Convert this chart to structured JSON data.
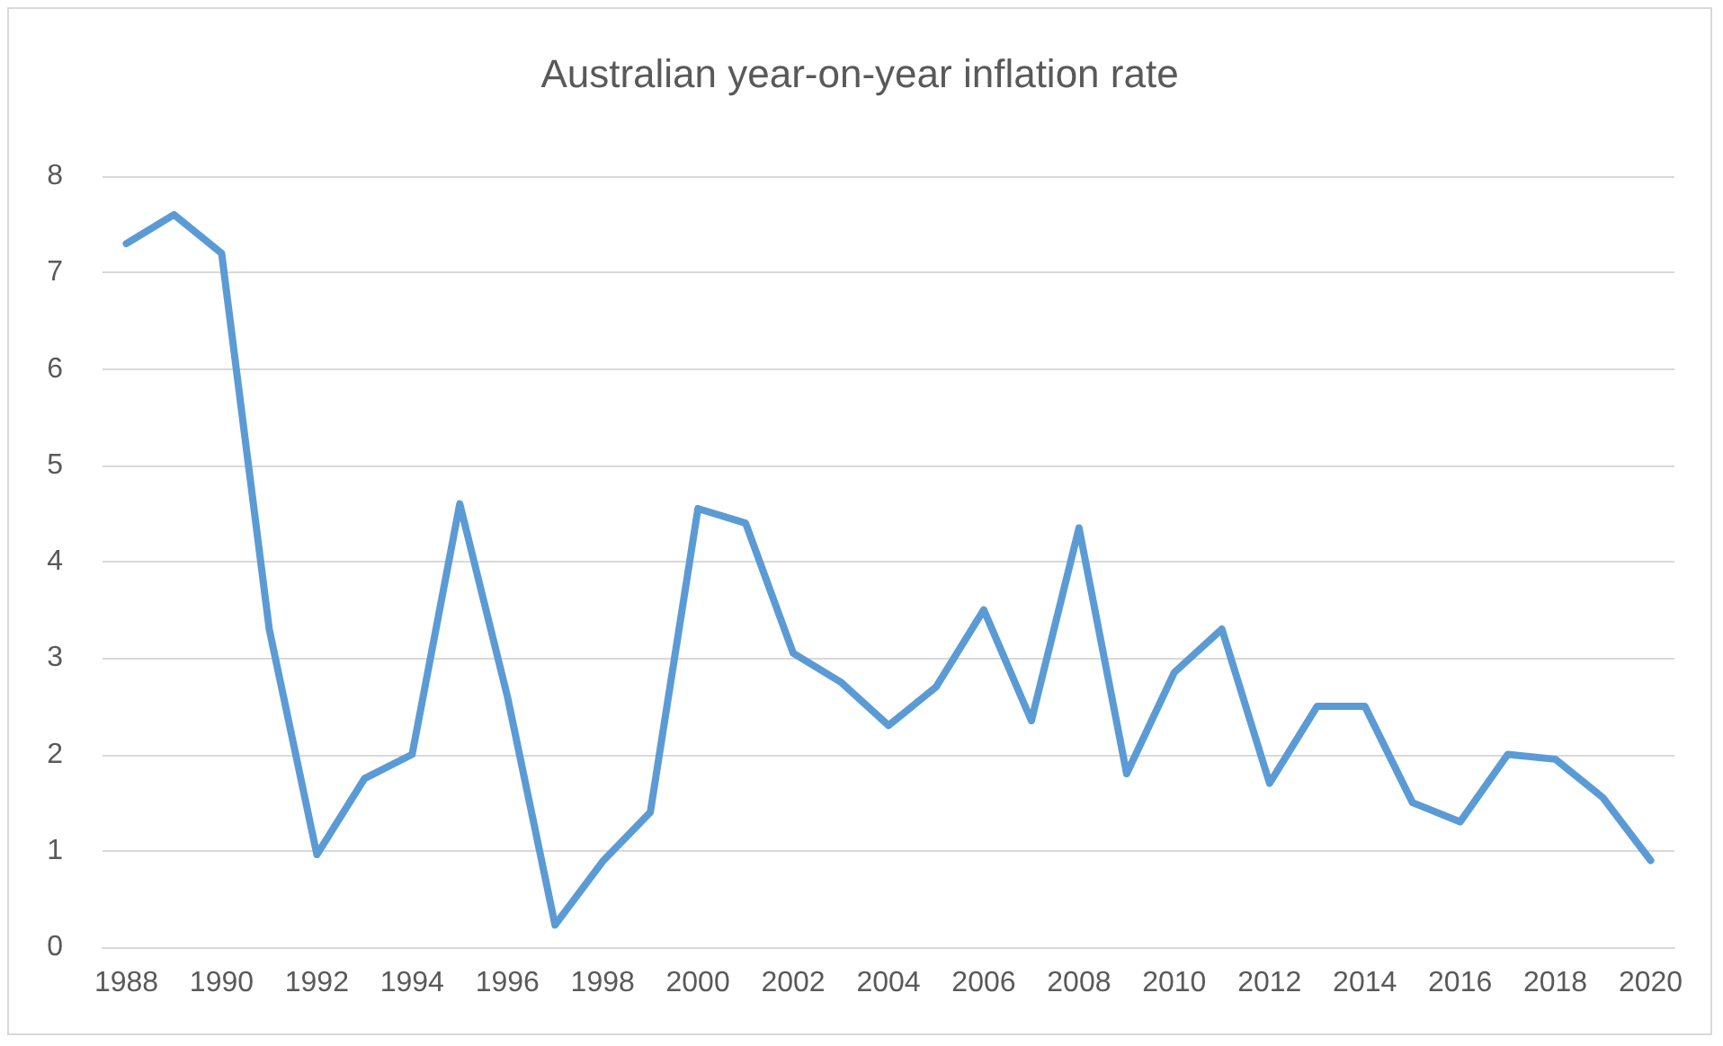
{
  "chart_data": {
    "type": "line",
    "title": "Australian year-on-year inflation rate",
    "categories": [
      "1988",
      null,
      "1990",
      null,
      "1992",
      null,
      "1994",
      null,
      "1996",
      null,
      "1998",
      null,
      "2000",
      null,
      "2002",
      null,
      "2004",
      null,
      "2006",
      null,
      "2008",
      null,
      "2010",
      null,
      "2012",
      null,
      "2014",
      null,
      "2016",
      null,
      "2018",
      null,
      "2020"
    ],
    "series": [
      {
        "color": "#5b9bd5",
        "values": [
          7.3,
          7.6,
          7.2,
          3.3,
          0.96,
          1.75,
          2.0,
          4.6,
          2.6,
          0.23,
          0.89,
          1.4,
          4.55,
          4.4,
          3.05,
          2.75,
          2.3,
          2.7,
          3.5,
          2.35,
          4.35,
          1.8,
          2.85,
          3.3,
          1.7,
          2.5,
          2.5,
          1.5,
          1.3,
          2.0,
          1.95,
          1.55,
          0.9
        ]
      }
    ],
    "ylim": [
      0,
      8
    ],
    "yticks": [
      0,
      1,
      2,
      3,
      4,
      5,
      6,
      7,
      8
    ],
    "grid": "y",
    "marker": "none",
    "line_style": "solid"
  }
}
